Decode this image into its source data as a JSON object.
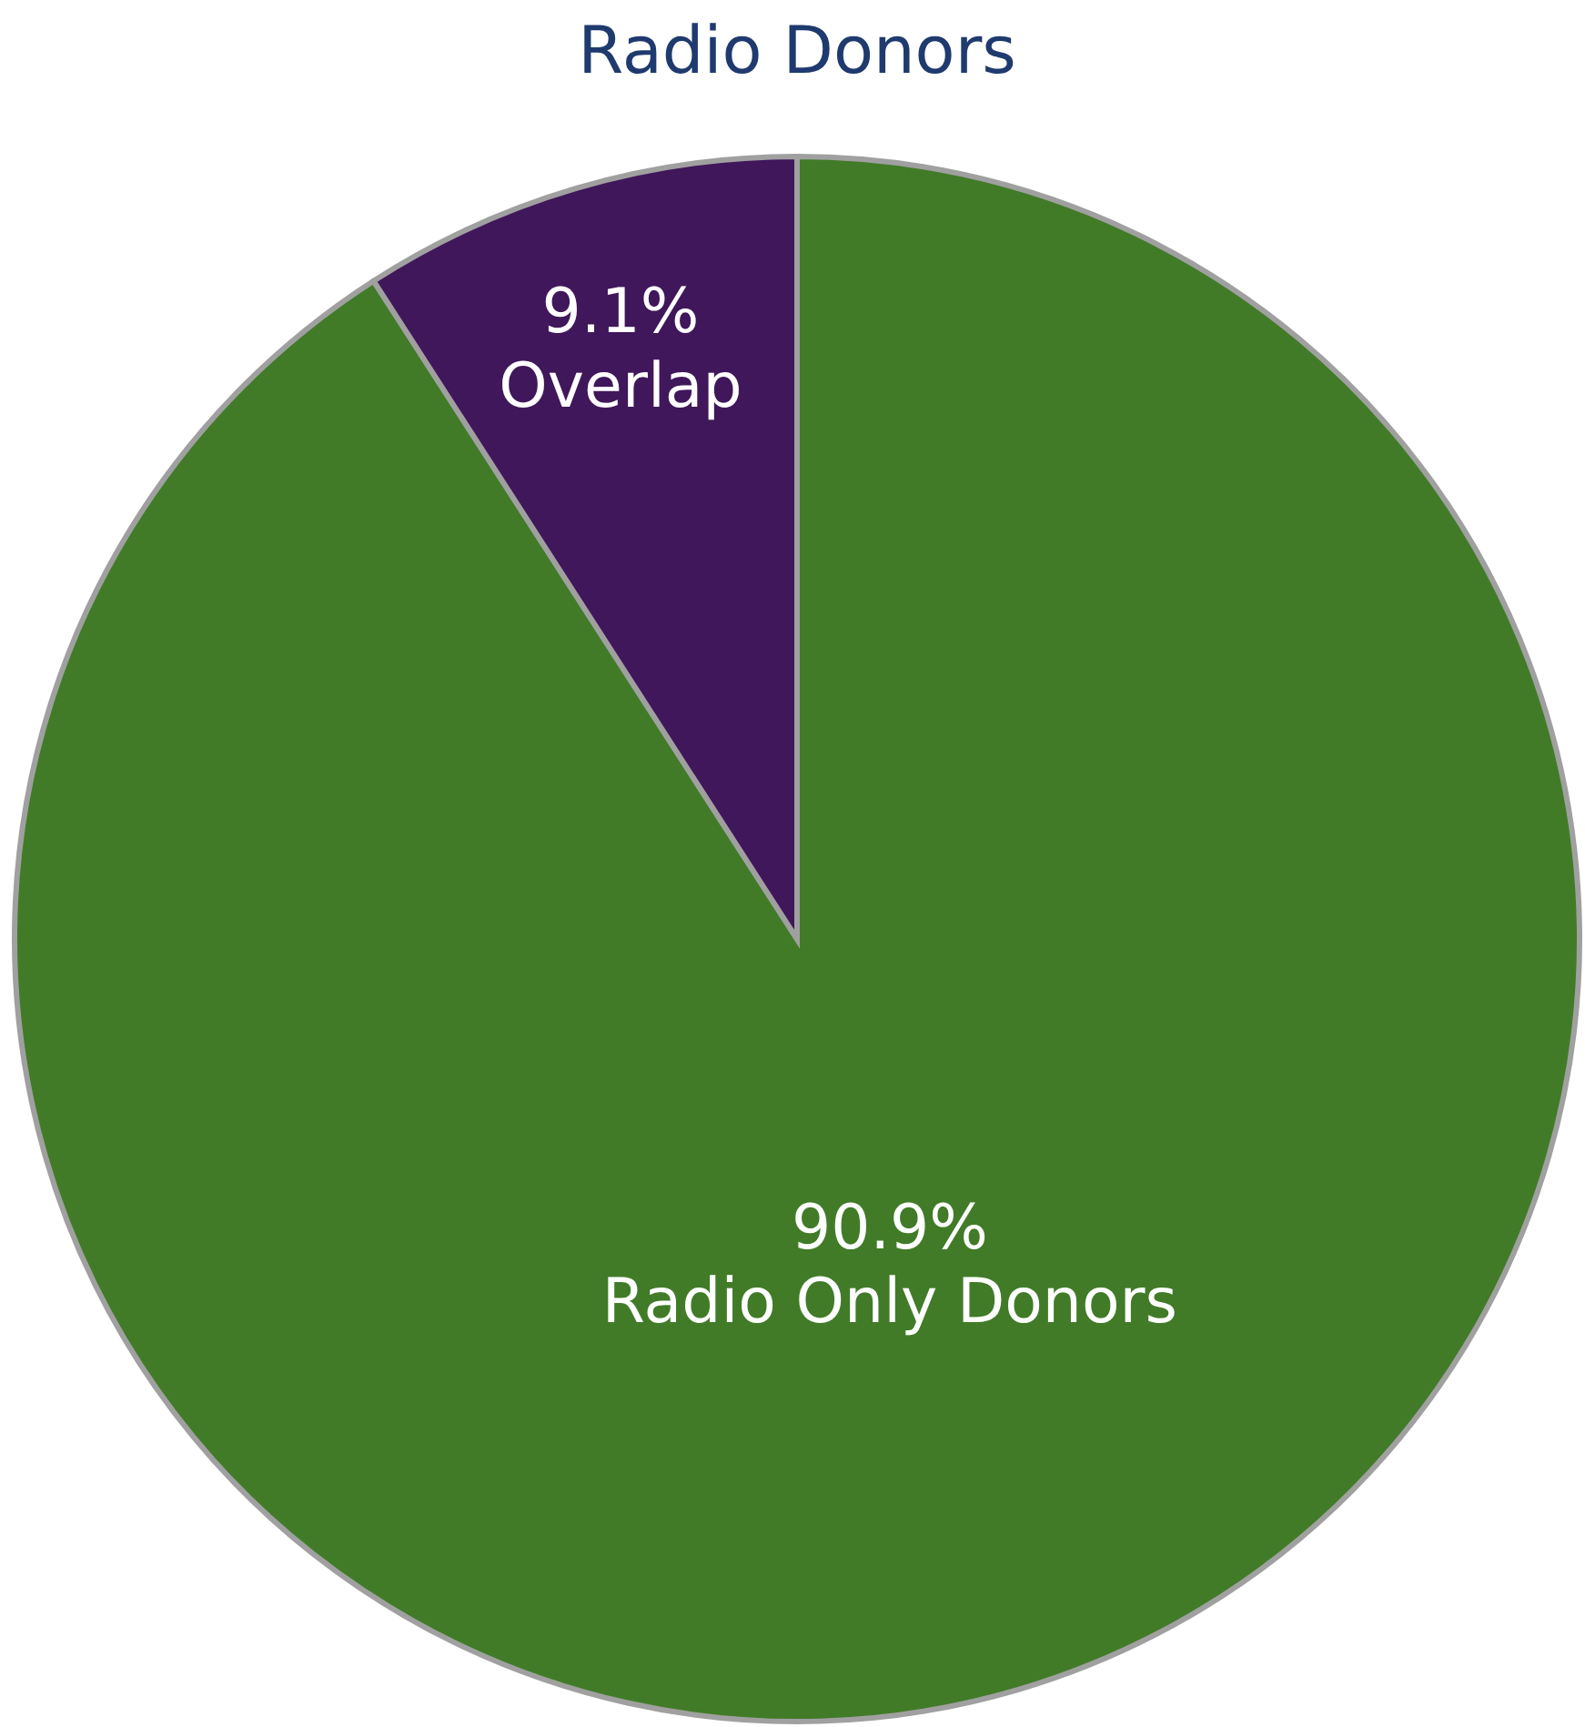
{
  "chart_data": {
    "type": "pie",
    "title": "Radio Donors",
    "categories": [
      "Radio Only Donors",
      "Overlap"
    ],
    "values": [
      90.9,
      9.1
    ],
    "value_labels": [
      "90.9%",
      "9.1%"
    ],
    "colors": [
      "#417b28",
      "#40175a"
    ]
  }
}
